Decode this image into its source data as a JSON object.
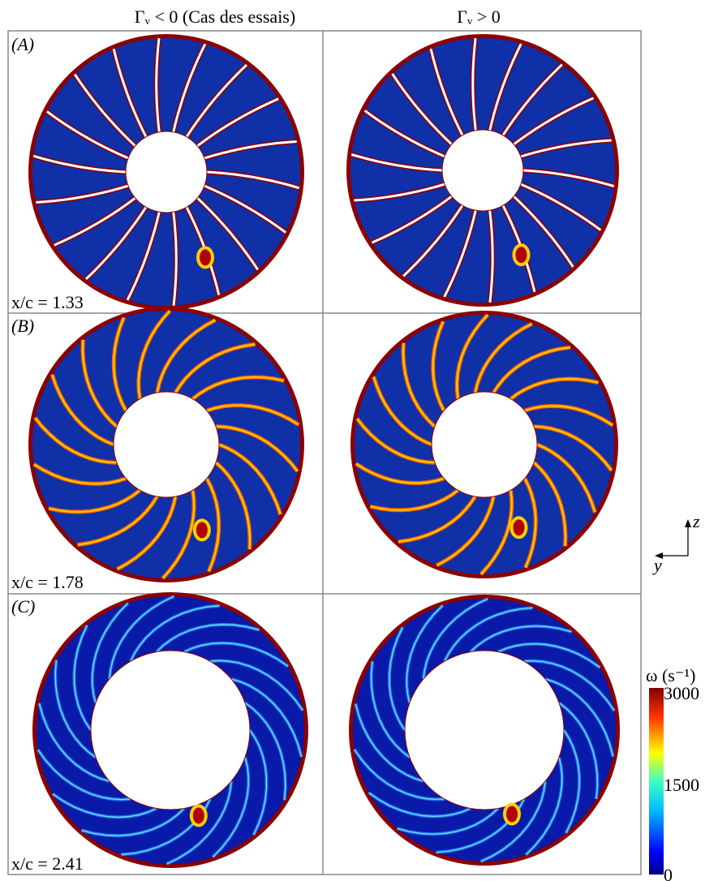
{
  "columns": [
    "Γᵥ < 0 (Cas des essais)",
    "Γᵥ > 0"
  ],
  "rows": [
    {
      "panel": "(A)",
      "station": "x/c = 1.33"
    },
    {
      "panel": "(B)",
      "station": "x/c = 1.78"
    },
    {
      "panel": "(C)",
      "station": "x/c = 2.41"
    }
  ],
  "axes": {
    "z": "z",
    "y": "y"
  },
  "colorbar": {
    "label": "ω (s⁻¹)",
    "ticks": [
      3000,
      1500,
      0
    ]
  }
}
